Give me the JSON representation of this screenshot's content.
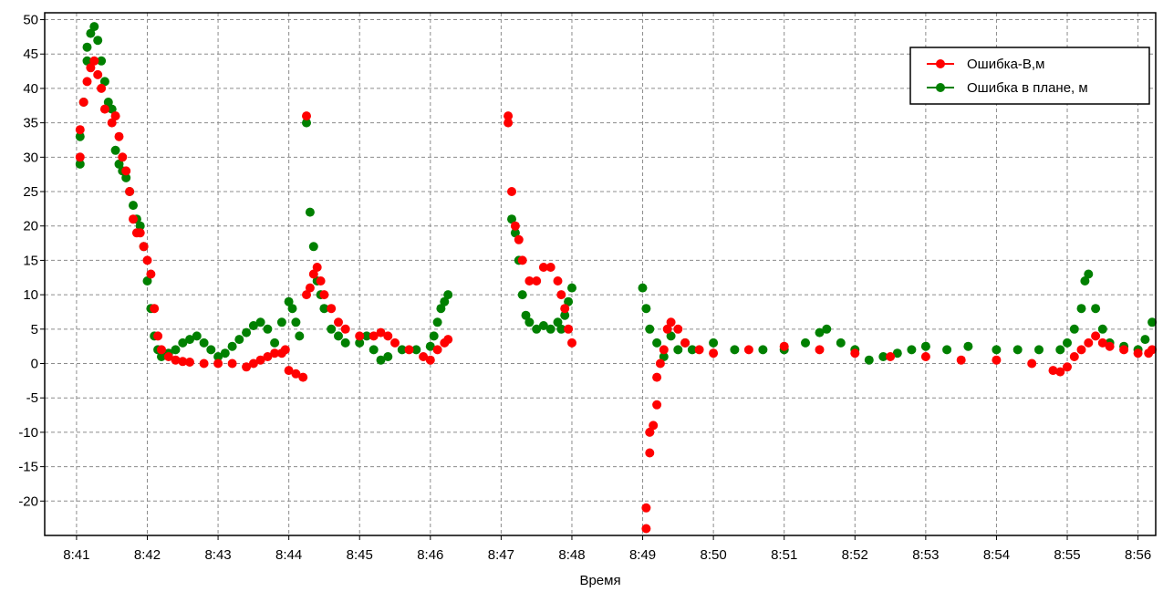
{
  "chart_data": {
    "type": "scatter",
    "title": "",
    "xlabel": "Время",
    "ylabel": "",
    "x_unit": "minutes",
    "x_ticks": [
      "8:41",
      "8:42",
      "8:43",
      "8:44",
      "8:45",
      "8:46",
      "8:47",
      "8:48",
      "8:49",
      "8:50",
      "8:51",
      "8:52",
      "8:53",
      "8:54",
      "8:55",
      "8:56"
    ],
    "y_ticks": [
      50,
      45,
      40,
      35,
      30,
      25,
      20,
      15,
      10,
      5,
      0,
      -5,
      -10,
      -15,
      -20
    ],
    "xlim": [
      "8:40.55",
      "8:56.25"
    ],
    "ylim": [
      -25,
      51
    ],
    "grid": true,
    "legend_position": "top-right",
    "series": [
      {
        "name": "Ошибка-В,м",
        "color": "#ff0000",
        "points": [
          [
            "8:41.05",
            30
          ],
          [
            "8:41.05",
            34
          ],
          [
            "8:41.1",
            38
          ],
          [
            "8:41.15",
            41
          ],
          [
            "8:41.2",
            43
          ],
          [
            "8:41.25",
            44
          ],
          [
            "8:41.3",
            42
          ],
          [
            "8:41.35",
            40
          ],
          [
            "8:41.4",
            37
          ],
          [
            "8:41.5",
            35
          ],
          [
            "8:41.55",
            36
          ],
          [
            "8:41.6",
            33
          ],
          [
            "8:41.65",
            30
          ],
          [
            "8:41.7",
            28
          ],
          [
            "8:41.75",
            25
          ],
          [
            "8:41.8",
            21
          ],
          [
            "8:41.85",
            19
          ],
          [
            "8:41.9",
            19
          ],
          [
            "8:41.95",
            17
          ],
          [
            "8:42.0",
            15
          ],
          [
            "8:42.05",
            13
          ],
          [
            "8:42.1",
            8
          ],
          [
            "8:42.15",
            4
          ],
          [
            "8:42.2",
            2
          ],
          [
            "8:42.3",
            1
          ],
          [
            "8:42.4",
            0.5
          ],
          [
            "8:42.5",
            0.3
          ],
          [
            "8:42.6",
            0.2
          ],
          [
            "8:42.8",
            0
          ],
          [
            "8:43.0",
            0
          ],
          [
            "8:43.2",
            0
          ],
          [
            "8:43.4",
            -0.5
          ],
          [
            "8:43.5",
            0
          ],
          [
            "8:43.6",
            0.5
          ],
          [
            "8:43.7",
            1
          ],
          [
            "8:43.8",
            1.5
          ],
          [
            "8:43.9",
            1.5
          ],
          [
            "8:43.95",
            2
          ],
          [
            "8:44.0",
            -1
          ],
          [
            "8:44.1",
            -1.5
          ],
          [
            "8:44.2",
            -2
          ],
          [
            "8:44.25",
            10
          ],
          [
            "8:44.25",
            36
          ],
          [
            "8:44.3",
            11
          ],
          [
            "8:44.35",
            13
          ],
          [
            "8:44.4",
            14
          ],
          [
            "8:44.45",
            12
          ],
          [
            "8:44.5",
            10
          ],
          [
            "8:44.6",
            8
          ],
          [
            "8:44.7",
            6
          ],
          [
            "8:44.8",
            5
          ],
          [
            "8:45.0",
            4
          ],
          [
            "8:45.2",
            4
          ],
          [
            "8:45.3",
            4.5
          ],
          [
            "8:45.4",
            4
          ],
          [
            "8:45.5",
            3
          ],
          [
            "8:45.7",
            2
          ],
          [
            "8:45.9",
            1
          ],
          [
            "8:46.0",
            0.5
          ],
          [
            "8:46.1",
            2
          ],
          [
            "8:46.2",
            3
          ],
          [
            "8:46.25",
            3.5
          ],
          [
            "8:47.1",
            35
          ],
          [
            "8:47.1",
            36
          ],
          [
            "8:47.15",
            25
          ],
          [
            "8:47.2",
            20
          ],
          [
            "8:47.25",
            18
          ],
          [
            "8:47.3",
            15
          ],
          [
            "8:47.4",
            12
          ],
          [
            "8:47.5",
            12
          ],
          [
            "8:47.6",
            14
          ],
          [
            "8:47.7",
            14
          ],
          [
            "8:47.8",
            12
          ],
          [
            "8:47.85",
            10
          ],
          [
            "8:47.9",
            8
          ],
          [
            "8:47.95",
            5
          ],
          [
            "8:48.0",
            3
          ],
          [
            "8:49.05",
            -24
          ],
          [
            "8:49.05",
            -21
          ],
          [
            "8:49.1",
            -13
          ],
          [
            "8:49.1",
            -10
          ],
          [
            "8:49.15",
            -9
          ],
          [
            "8:49.2",
            -6
          ],
          [
            "8:49.2",
            -2
          ],
          [
            "8:49.25",
            0
          ],
          [
            "8:49.3",
            2
          ],
          [
            "8:49.35",
            5
          ],
          [
            "8:49.4",
            6
          ],
          [
            "8:49.5",
            5
          ],
          [
            "8:49.6",
            3
          ],
          [
            "8:49.8",
            2
          ],
          [
            "8:50.0",
            1.5
          ],
          [
            "8:50.5",
            2
          ],
          [
            "8:51.0",
            2.5
          ],
          [
            "8:51.5",
            2
          ],
          [
            "8:52.0",
            1.5
          ],
          [
            "8:52.5",
            1
          ],
          [
            "8:53.0",
            1
          ],
          [
            "8:53.5",
            0.5
          ],
          [
            "8:54.0",
            0.5
          ],
          [
            "8:54.5",
            0
          ],
          [
            "8:54.8",
            -1
          ],
          [
            "8:54.9",
            -1.2
          ],
          [
            "8:55.0",
            -0.5
          ],
          [
            "8:55.1",
            1
          ],
          [
            "8:55.2",
            2
          ],
          [
            "8:55.3",
            3
          ],
          [
            "8:55.4",
            4
          ],
          [
            "8:55.5",
            3
          ],
          [
            "8:55.6",
            2.5
          ],
          [
            "8:55.8",
            2
          ],
          [
            "8:56.0",
            1.5
          ],
          [
            "8:56.15",
            1.5
          ],
          [
            "8:56.2",
            2
          ]
        ]
      },
      {
        "name": "Ошибка в плане, м",
        "color": "#008000",
        "points": [
          [
            "8:41.05",
            29
          ],
          [
            "8:41.05",
            33
          ],
          [
            "8:41.1",
            38
          ],
          [
            "8:41.15",
            44
          ],
          [
            "8:41.15",
            46
          ],
          [
            "8:41.2",
            48
          ],
          [
            "8:41.25",
            49
          ],
          [
            "8:41.3",
            47
          ],
          [
            "8:41.35",
            44
          ],
          [
            "8:41.4",
            41
          ],
          [
            "8:41.45",
            38
          ],
          [
            "8:41.5",
            37
          ],
          [
            "8:41.55",
            31
          ],
          [
            "8:41.6",
            29
          ],
          [
            "8:41.65",
            28
          ],
          [
            "8:41.7",
            27
          ],
          [
            "8:41.75",
            25
          ],
          [
            "8:41.8",
            23
          ],
          [
            "8:41.85",
            21
          ],
          [
            "8:41.9",
            20
          ],
          [
            "8:41.95",
            17
          ],
          [
            "8:42.0",
            12
          ],
          [
            "8:42.05",
            8
          ],
          [
            "8:42.1",
            4
          ],
          [
            "8:42.15",
            2
          ],
          [
            "8:42.2",
            1
          ],
          [
            "8:42.3",
            1.5
          ],
          [
            "8:42.4",
            2
          ],
          [
            "8:42.5",
            3
          ],
          [
            "8:42.6",
            3.5
          ],
          [
            "8:42.7",
            4
          ],
          [
            "8:42.8",
            3
          ],
          [
            "8:42.9",
            2
          ],
          [
            "8:43.0",
            1
          ],
          [
            "8:43.1",
            1.5
          ],
          [
            "8:43.2",
            2.5
          ],
          [
            "8:43.3",
            3.5
          ],
          [
            "8:43.4",
            4.5
          ],
          [
            "8:43.5",
            5.5
          ],
          [
            "8:43.6",
            6
          ],
          [
            "8:43.7",
            5
          ],
          [
            "8:43.8",
            3
          ],
          [
            "8:43.9",
            6
          ],
          [
            "8:44.0",
            9
          ],
          [
            "8:44.05",
            8
          ],
          [
            "8:44.1",
            6
          ],
          [
            "8:44.15",
            4
          ],
          [
            "8:44.25",
            35
          ],
          [
            "8:44.3",
            22
          ],
          [
            "8:44.35",
            17
          ],
          [
            "8:44.4",
            12
          ],
          [
            "8:44.45",
            10
          ],
          [
            "8:44.5",
            8
          ],
          [
            "8:44.6",
            5
          ],
          [
            "8:44.7",
            4
          ],
          [
            "8:44.8",
            3
          ],
          [
            "8:45.0",
            3
          ],
          [
            "8:45.1",
            4
          ],
          [
            "8:45.2",
            2
          ],
          [
            "8:45.3",
            0.5
          ],
          [
            "8:45.4",
            1
          ],
          [
            "8:45.6",
            2
          ],
          [
            "8:45.8",
            2
          ],
          [
            "8:46.0",
            2.5
          ],
          [
            "8:46.05",
            4
          ],
          [
            "8:46.1",
            6
          ],
          [
            "8:46.15",
            8
          ],
          [
            "8:46.2",
            9
          ],
          [
            "8:46.25",
            10
          ],
          [
            "8:47.15",
            21
          ],
          [
            "8:47.2",
            19
          ],
          [
            "8:47.25",
            15
          ],
          [
            "8:47.3",
            10
          ],
          [
            "8:47.35",
            7
          ],
          [
            "8:47.4",
            6
          ],
          [
            "8:47.5",
            5
          ],
          [
            "8:47.6",
            5.5
          ],
          [
            "8:47.7",
            5
          ],
          [
            "8:47.8",
            6
          ],
          [
            "8:47.85",
            5
          ],
          [
            "8:47.9",
            7
          ],
          [
            "8:47.95",
            9
          ],
          [
            "8:48.0",
            11
          ],
          [
            "8:49.0",
            11
          ],
          [
            "8:49.05",
            8
          ],
          [
            "8:49.1",
            5
          ],
          [
            "8:49.2",
            3
          ],
          [
            "8:49.3",
            1
          ],
          [
            "8:49.4",
            4
          ],
          [
            "8:49.5",
            2
          ],
          [
            "8:49.6",
            3
          ],
          [
            "8:49.7",
            2
          ],
          [
            "8:50.0",
            3
          ],
          [
            "8:50.3",
            2
          ],
          [
            "8:50.7",
            2
          ],
          [
            "8:51.0",
            2
          ],
          [
            "8:51.3",
            3
          ],
          [
            "8:51.5",
            4.5
          ],
          [
            "8:51.6",
            5
          ],
          [
            "8:51.8",
            3
          ],
          [
            "8:52.0",
            2
          ],
          [
            "8:52.2",
            0.5
          ],
          [
            "8:52.4",
            1
          ],
          [
            "8:52.6",
            1.5
          ],
          [
            "8:52.8",
            2
          ],
          [
            "8:53.0",
            2.5
          ],
          [
            "8:53.3",
            2
          ],
          [
            "8:53.6",
            2.5
          ],
          [
            "8:54.0",
            2
          ],
          [
            "8:54.3",
            2
          ],
          [
            "8:54.6",
            2
          ],
          [
            "8:54.9",
            2
          ],
          [
            "8:55.0",
            3
          ],
          [
            "8:55.1",
            5
          ],
          [
            "8:55.2",
            8
          ],
          [
            "8:55.25",
            12
          ],
          [
            "8:55.3",
            13
          ],
          [
            "8:55.4",
            8
          ],
          [
            "8:55.5",
            5
          ],
          [
            "8:55.6",
            3
          ],
          [
            "8:55.8",
            2.5
          ],
          [
            "8:56.0",
            2
          ],
          [
            "8:56.1",
            3.5
          ],
          [
            "8:56.2",
            6
          ]
        ]
      }
    ]
  }
}
